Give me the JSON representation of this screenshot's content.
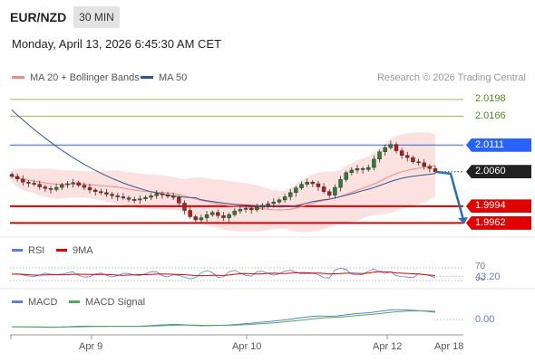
{
  "header": {
    "symbol": "EUR/NZD",
    "timeframe": "30 MIN",
    "datetime": "Monday, April 13, 2026 6:45:30 AM CET"
  },
  "legend": {
    "ma20": "MA 20 + Bollinger Bands",
    "ma50": "MA 50",
    "credit": "Research © 2026 Trading Central"
  },
  "colors": {
    "ma20": "#f28b82",
    "ma50": "#2f5597",
    "bb_fill": "#fbdcdc",
    "resistance": "#8bc34a",
    "pivot": "#2962ff",
    "support": "#e00000",
    "current": "#222222",
    "rsi": "#5b7fd6",
    "rsi_ma": "#e00000",
    "macd": "#5b7fd6",
    "macd_signal": "#4caf50"
  },
  "levels": [
    {
      "label": "2.0198",
      "value": 2.0198,
      "kind": "resistance"
    },
    {
      "label": "2.0166",
      "value": 2.0166,
      "kind": "resistance"
    },
    {
      "label": "2.0111",
      "value": 2.0111,
      "kind": "pivot"
    },
    {
      "label": "2.0060",
      "value": 2.006,
      "kind": "current"
    },
    {
      "label": "1.9994",
      "value": 1.9994,
      "kind": "support"
    },
    {
      "label": "1.9962",
      "value": 1.9962,
      "kind": "support"
    }
  ],
  "rsi_panel": {
    "label": "RSI",
    "ma_label": "9MA",
    "level_70": "70",
    "value": "43.20",
    "level_30": "30"
  },
  "macd_panel": {
    "label": "MACD",
    "signal_label": "MACD Signal",
    "value": "0.00"
  },
  "x_axis": {
    "ticks": [
      "Apr 9",
      "Apr 10",
      "Apr 12",
      "Apr 18"
    ]
  },
  "chart_data": {
    "type": "candlestick",
    "ylim": [
      1.9935,
      2.0222
    ],
    "x_ticks": [
      "Apr 9",
      "Apr 10",
      "Apr 12",
      "Apr 18"
    ],
    "price_closes": [
      2.0051,
      2.0046,
      2.004,
      2.0038,
      2.0036,
      2.0031,
      2.0028,
      2.0026,
      2.003,
      2.0035,
      2.0037,
      2.0039,
      2.0034,
      2.003,
      2.0025,
      2.0022,
      2.002,
      2.0017,
      2.0014,
      2.0012,
      2.001,
      2.0007,
      2.0006,
      2.0008,
      2.0011,
      2.0014,
      2.0018,
      2.0016,
      2.0013,
      2.0011,
      2.0,
      1.9986,
      1.9974,
      1.9968,
      1.9972,
      1.9978,
      1.9982,
      1.9976,
      1.9972,
      1.9978,
      1.9985,
      1.9988,
      1.999,
      1.9987,
      1.9992,
      1.9996,
      1.9999,
      2.0002,
      2.0006,
      2.0012,
      2.002,
      2.0029,
      2.0036,
      2.004,
      2.0037,
      2.0031,
      2.0022,
      2.0015,
      2.003,
      2.0045,
      2.0058,
      2.0063,
      2.0066,
      2.0064,
      2.0068,
      2.0084,
      2.0098,
      2.0106,
      2.0112,
      2.01,
      2.0091,
      2.0087,
      2.0079,
      2.0077,
      2.007,
      2.0066,
      2.006
    ],
    "rsi": {
      "value": 43.2,
      "levels": [
        70,
        30
      ]
    },
    "macd": {
      "value": 0.0
    }
  }
}
